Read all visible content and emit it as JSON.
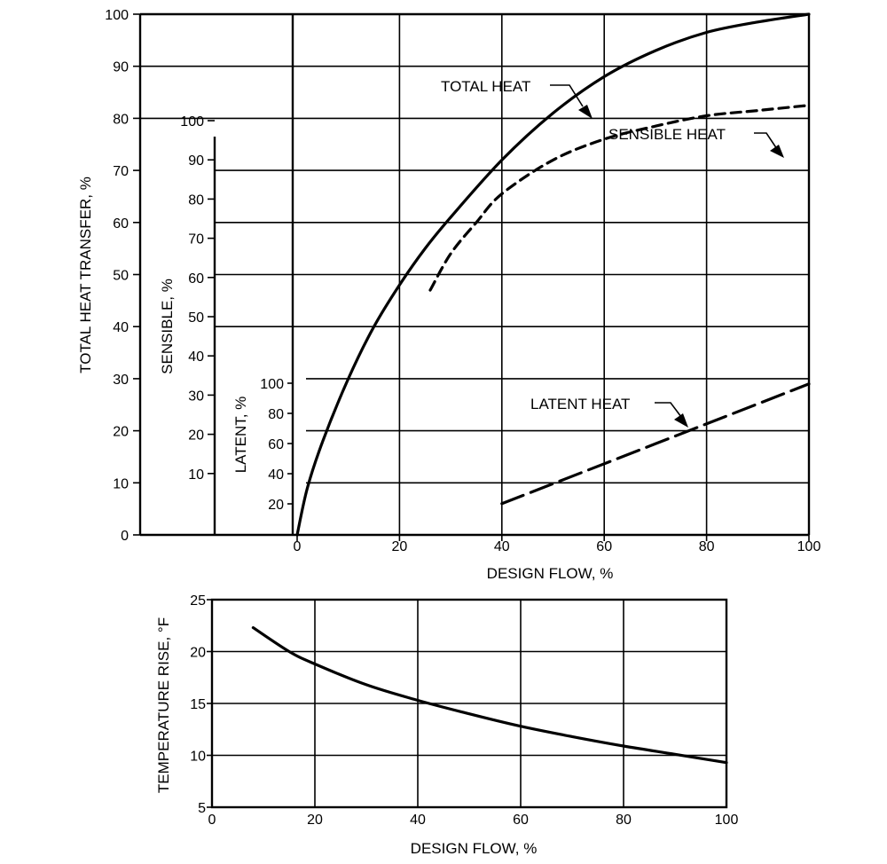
{
  "chart_data": [
    {
      "type": "line",
      "xlabel": "DESIGN FLOW, %",
      "xlim": [
        0,
        100
      ],
      "x_ticks": [
        0,
        20,
        40,
        60,
        80,
        100
      ],
      "axes": {
        "total": {
          "label": "TOTAL HEAT TRANSFER, %",
          "ylim": [
            0,
            100
          ],
          "ticks": [
            0,
            10,
            20,
            30,
            40,
            50,
            60,
            70,
            80,
            90,
            100
          ]
        },
        "sensible": {
          "label": "SENSIBLE, %",
          "ylim": [
            0,
            100
          ],
          "ticks": [
            10,
            20,
            30,
            40,
            50,
            60,
            70,
            80,
            90,
            100
          ]
        },
        "latent": {
          "label": "LATENT, %",
          "ylim": [
            0,
            100
          ],
          "ticks": [
            20,
            40,
            60,
            80,
            100
          ]
        }
      },
      "series": [
        {
          "name": "TOTAL HEAT",
          "axis": "total",
          "style": "solid",
          "x": [
            0,
            2,
            5,
            10,
            15,
            20,
            25,
            30,
            40,
            50,
            60,
            70,
            80,
            90,
            100
          ],
          "y": [
            0,
            9,
            18,
            30,
            40,
            48,
            55,
            61,
            72,
            81,
            88,
            93,
            96.5,
            98.5,
            100
          ]
        },
        {
          "name": "SENSIBLE HEAT",
          "axis": "total",
          "style": "dashed",
          "x": [
            26,
            30,
            35,
            40,
            50,
            60,
            70,
            80,
            90,
            100
          ],
          "y": [
            47,
            54,
            60,
            65.5,
            72,
            76,
            78.5,
            80.5,
            81.5,
            82.5
          ]
        },
        {
          "name": "LATENT HEAT",
          "axis": "total",
          "style": "longdash",
          "x": [
            40,
            100
          ],
          "y": [
            6,
            29
          ]
        }
      ],
      "annotations": [
        "TOTAL HEAT",
        "SENSIBLE HEAT",
        "LATENT HEAT"
      ]
    },
    {
      "type": "line",
      "xlabel": "DESIGN FLOW, %",
      "ylabel": "TEMPERATURE RISE, °F",
      "xlim": [
        0,
        100
      ],
      "ylim": [
        5,
        25
      ],
      "x_ticks": [
        0,
        20,
        40,
        60,
        80,
        100
      ],
      "y_ticks": [
        5,
        10,
        15,
        20,
        25
      ],
      "series": [
        {
          "style": "solid",
          "x": [
            8,
            15,
            20,
            30,
            40,
            50,
            60,
            70,
            80,
            90,
            100
          ],
          "y": [
            22.3,
            20,
            18.8,
            16.8,
            15.3,
            14,
            12.8,
            11.8,
            10.9,
            10.1,
            9.3
          ]
        }
      ]
    }
  ]
}
